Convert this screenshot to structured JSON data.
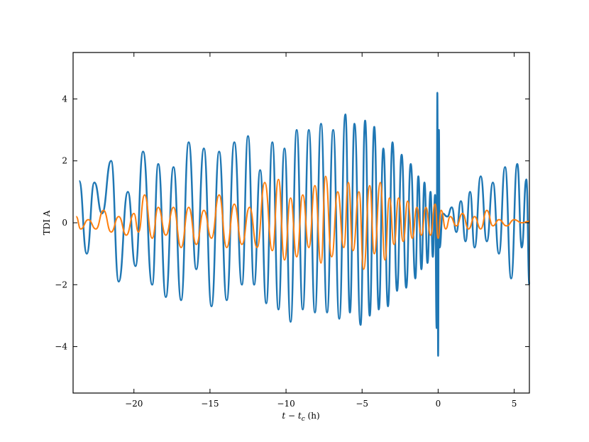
{
  "chart_data": {
    "type": "line",
    "xlabel_main": "t − t",
    "xlabel_sub": "c",
    "xlabel_unit": " (h)",
    "ylabel": "TDI A",
    "xlim": [
      -24,
      6
    ],
    "ylim": [
      -5.5,
      5.5
    ],
    "xticks": [
      -20,
      -15,
      -10,
      -5,
      0,
      5
    ],
    "xtick_labels": [
      "−20",
      "−15",
      "−10",
      "−5",
      "0",
      "5"
    ],
    "yticks": [
      -4,
      -2,
      0,
      2,
      4
    ],
    "ytick_labels": [
      "−4",
      "−2",
      "0",
      "2",
      "4"
    ],
    "grid": false,
    "legend": "none",
    "series": [
      {
        "color": "#1f77b4",
        "line_width": 2.5,
        "peaks": [
          [
            -23.6,
            1.35
          ],
          [
            -23.1,
            -1.0
          ],
          [
            -22.6,
            1.3
          ],
          [
            -22.1,
            0.3
          ],
          [
            -21.5,
            2.0
          ],
          [
            -21.0,
            -1.9
          ],
          [
            -20.4,
            1.0
          ],
          [
            -19.9,
            -1.4
          ],
          [
            -19.4,
            2.3
          ],
          [
            -18.8,
            -2.0
          ],
          [
            -18.4,
            1.9
          ],
          [
            -17.9,
            -2.4
          ],
          [
            -17.4,
            1.8
          ],
          [
            -16.9,
            -2.5
          ],
          [
            -16.4,
            2.6
          ],
          [
            -15.9,
            -1.5
          ],
          [
            -15.4,
            2.4
          ],
          [
            -14.9,
            -2.7
          ],
          [
            -14.4,
            2.3
          ],
          [
            -13.9,
            -2.5
          ],
          [
            -13.4,
            2.6
          ],
          [
            -12.9,
            -2.0
          ],
          [
            -12.5,
            2.8
          ],
          [
            -12.1,
            -2.0
          ],
          [
            -11.7,
            1.7
          ],
          [
            -11.3,
            -2.6
          ],
          [
            -10.9,
            2.6
          ],
          [
            -10.5,
            -2.8
          ],
          [
            -10.1,
            2.4
          ],
          [
            -9.7,
            -3.2
          ],
          [
            -9.3,
            3.0
          ],
          [
            -8.9,
            -2.8
          ],
          [
            -8.5,
            3.0
          ],
          [
            -8.1,
            -2.9
          ],
          [
            -7.7,
            3.2
          ],
          [
            -7.3,
            -2.9
          ],
          [
            -6.9,
            3.0
          ],
          [
            -6.5,
            -3.1
          ],
          [
            -6.1,
            3.5
          ],
          [
            -5.8,
            -2.9
          ],
          [
            -5.5,
            3.2
          ],
          [
            -5.1,
            -3.3
          ],
          [
            -4.8,
            3.3
          ],
          [
            -4.5,
            -3.0
          ],
          [
            -4.2,
            3.1
          ],
          [
            -3.9,
            -2.8
          ],
          [
            -3.6,
            2.4
          ],
          [
            -3.3,
            -2.7
          ],
          [
            -3.0,
            2.6
          ],
          [
            -2.7,
            -2.2
          ],
          [
            -2.4,
            2.2
          ],
          [
            -2.1,
            -2.1
          ],
          [
            -1.8,
            1.9
          ],
          [
            -1.5,
            -1.8
          ],
          [
            -1.3,
            1.5
          ],
          [
            -1.1,
            -1.5
          ],
          [
            -0.9,
            1.3
          ],
          [
            -0.7,
            -1.3
          ],
          [
            -0.5,
            1.0
          ],
          [
            -0.35,
            -1.1
          ],
          [
            -0.2,
            0.9
          ],
          [
            -0.1,
            -3.4
          ],
          [
            -0.05,
            4.2
          ],
          [
            0.0,
            -4.3
          ],
          [
            0.05,
            3.0
          ],
          [
            0.1,
            -0.8
          ],
          [
            0.3,
            0.3
          ],
          [
            0.6,
            0.2
          ],
          [
            0.9,
            0.5
          ],
          [
            1.2,
            -0.3
          ],
          [
            1.5,
            0.7
          ],
          [
            1.8,
            -0.6
          ],
          [
            2.1,
            1.0
          ],
          [
            2.4,
            -0.8
          ],
          [
            2.8,
            1.5
          ],
          [
            3.2,
            -0.6
          ],
          [
            3.6,
            1.3
          ],
          [
            4.0,
            -1.0
          ],
          [
            4.4,
            1.8
          ],
          [
            4.8,
            -1.8
          ],
          [
            5.2,
            1.9
          ],
          [
            5.5,
            -0.8
          ],
          [
            5.8,
            1.4
          ],
          [
            6.0,
            -2.0
          ]
        ]
      },
      {
        "color": "#ff7f0e",
        "line_width": 2.0,
        "peaks": [
          [
            -23.8,
            0.2
          ],
          [
            -23.5,
            -0.2
          ],
          [
            -23.0,
            0.1
          ],
          [
            -22.5,
            -0.2
          ],
          [
            -22.0,
            0.4
          ],
          [
            -21.5,
            -0.3
          ],
          [
            -21.0,
            0.2
          ],
          [
            -20.5,
            -0.4
          ],
          [
            -20.0,
            0.3
          ],
          [
            -19.7,
            -0.3
          ],
          [
            -19.3,
            0.9
          ],
          [
            -18.8,
            -0.5
          ],
          [
            -18.4,
            0.5
          ],
          [
            -17.9,
            -0.4
          ],
          [
            -17.4,
            0.5
          ],
          [
            -16.9,
            -0.8
          ],
          [
            -16.4,
            0.5
          ],
          [
            -15.9,
            -0.7
          ],
          [
            -15.4,
            0.4
          ],
          [
            -14.9,
            -0.5
          ],
          [
            -14.4,
            0.9
          ],
          [
            -13.9,
            -0.8
          ],
          [
            -13.4,
            0.6
          ],
          [
            -12.9,
            -0.7
          ],
          [
            -12.4,
            0.5
          ],
          [
            -11.9,
            -0.8
          ],
          [
            -11.4,
            1.3
          ],
          [
            -10.9,
            -0.9
          ],
          [
            -10.5,
            1.4
          ],
          [
            -10.1,
            -1.2
          ],
          [
            -9.7,
            0.8
          ],
          [
            -9.3,
            -1.1
          ],
          [
            -8.9,
            0.9
          ],
          [
            -8.5,
            -0.8
          ],
          [
            -8.1,
            1.2
          ],
          [
            -7.7,
            -1.3
          ],
          [
            -7.4,
            1.5
          ],
          [
            -7.0,
            -1.1
          ],
          [
            -6.6,
            1.0
          ],
          [
            -6.2,
            -0.8
          ],
          [
            -5.9,
            1.3
          ],
          [
            -5.6,
            -0.9
          ],
          [
            -5.2,
            1.0
          ],
          [
            -4.9,
            -1.5
          ],
          [
            -4.5,
            1.2
          ],
          [
            -4.2,
            -1.0
          ],
          [
            -3.8,
            1.3
          ],
          [
            -3.5,
            -1.2
          ],
          [
            -3.2,
            0.8
          ],
          [
            -2.9,
            -0.7
          ],
          [
            -2.6,
            0.8
          ],
          [
            -2.3,
            -0.6
          ],
          [
            -2.0,
            0.7
          ],
          [
            -1.7,
            -0.5
          ],
          [
            -1.4,
            0.5
          ],
          [
            -1.1,
            -0.4
          ],
          [
            -0.8,
            0.5
          ],
          [
            -0.5,
            -0.4
          ],
          [
            -0.2,
            0.6
          ],
          [
            0.0,
            -0.5
          ],
          [
            0.2,
            0.4
          ],
          [
            0.5,
            -0.2
          ],
          [
            0.8,
            0.2
          ],
          [
            1.2,
            -0.1
          ],
          [
            1.6,
            0.3
          ],
          [
            2.0,
            -0.2
          ],
          [
            2.4,
            0.2
          ],
          [
            2.8,
            -0.2
          ],
          [
            3.2,
            0.4
          ],
          [
            3.6,
            -0.1
          ],
          [
            4.0,
            0.1
          ],
          [
            4.5,
            -0.1
          ],
          [
            5.0,
            0.1
          ],
          [
            5.5,
            0.0
          ],
          [
            6.0,
            0.05
          ]
        ]
      }
    ]
  }
}
